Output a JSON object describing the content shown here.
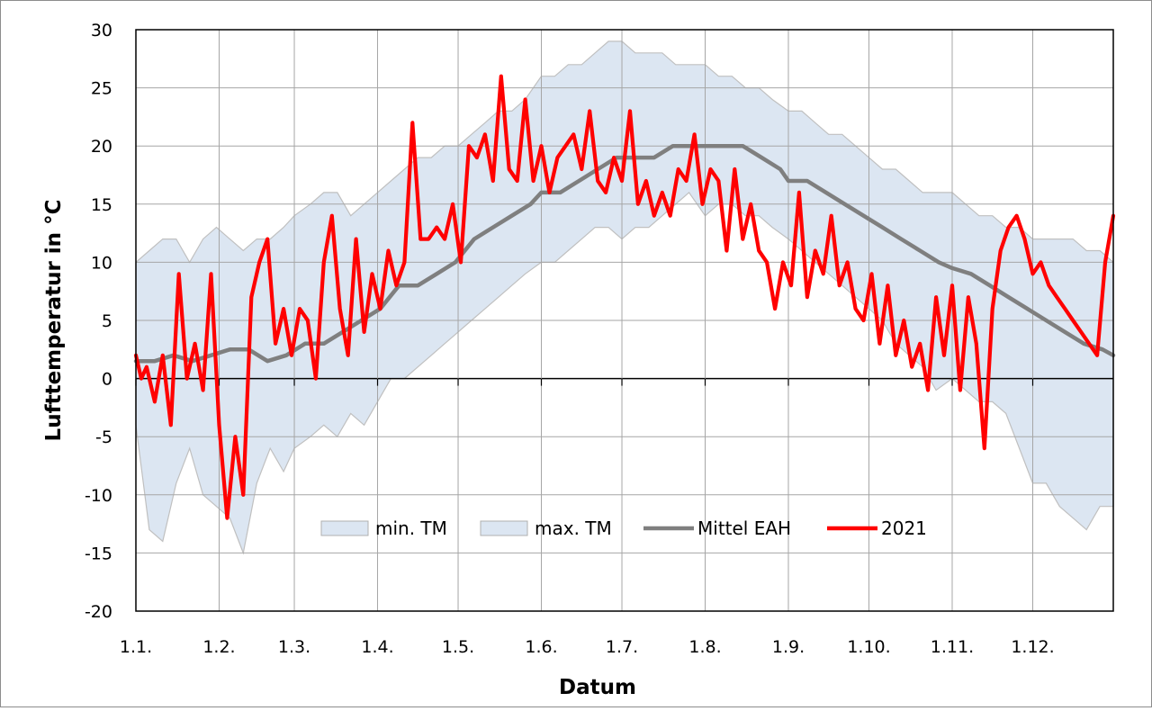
{
  "chart_data": {
    "type": "line",
    "title": "",
    "xlabel": "Datum",
    "ylabel": "Lufttemperatur in °C",
    "ylim": [
      -20,
      30
    ],
    "yticks": [
      30,
      25,
      20,
      15,
      10,
      5,
      0,
      -5,
      -10,
      -15,
      -20
    ],
    "xlim_day": [
      1,
      365
    ],
    "xticks": [
      "1.1.",
      "1.2.",
      "1.3.",
      "1.4.",
      "1.5.",
      "1.6.",
      "1.7.",
      "1.8.",
      "1.9.",
      "1.10.",
      "1.11.",
      "1.12."
    ],
    "grid": true,
    "legend_position": "bottom-center inside plot",
    "x_unit": "day of year",
    "series": [
      {
        "name": "min. TM",
        "kind": "band-lower",
        "color": "#dce6f2",
        "x": [
          1,
          6,
          11,
          16,
          21,
          26,
          31,
          36,
          41,
          46,
          51,
          56,
          60,
          66,
          71,
          76,
          81,
          86,
          91,
          96,
          101,
          106,
          111,
          116,
          121,
          126,
          131,
          136,
          141,
          146,
          152,
          157,
          162,
          167,
          172,
          177,
          182,
          187,
          192,
          197,
          202,
          207,
          213,
          218,
          223,
          228,
          233,
          238,
          244,
          249,
          254,
          259,
          264,
          269,
          274,
          279,
          284,
          289,
          294,
          299,
          305,
          310,
          315,
          320,
          325,
          330,
          335,
          340,
          345,
          350,
          355,
          360,
          365
        ],
        "values": [
          -4,
          -13,
          -14,
          -9,
          -6,
          -10,
          -11,
          -12,
          -15,
          -9,
          -6,
          -8,
          -6,
          -5,
          -4,
          -5,
          -3,
          -4,
          -2,
          0,
          0,
          1,
          2,
          3,
          4,
          5,
          6,
          7,
          8,
          9,
          10,
          10,
          11,
          12,
          13,
          13,
          12,
          13,
          13,
          14,
          15,
          16,
          14,
          15,
          15,
          14,
          14,
          13,
          12,
          11,
          10,
          9,
          8,
          7,
          6,
          5,
          3,
          2,
          1,
          -1,
          0,
          -1,
          -2,
          -2,
          -3,
          -6,
          -9,
          -9,
          -11,
          -12,
          -13,
          -11,
          -11
        ]
      },
      {
        "name": "max. TM",
        "kind": "band-upper",
        "color": "#dce6f2",
        "x": [
          1,
          6,
          11,
          16,
          21,
          26,
          31,
          36,
          41,
          46,
          51,
          56,
          60,
          66,
          71,
          76,
          81,
          86,
          91,
          96,
          101,
          106,
          111,
          116,
          121,
          126,
          131,
          136,
          141,
          146,
          152,
          157,
          162,
          167,
          172,
          177,
          182,
          187,
          192,
          197,
          202,
          207,
          213,
          218,
          223,
          228,
          233,
          238,
          244,
          249,
          254,
          259,
          264,
          269,
          274,
          279,
          284,
          289,
          294,
          299,
          305,
          310,
          315,
          320,
          325,
          330,
          335,
          340,
          345,
          350,
          355,
          360,
          365
        ],
        "values": [
          10,
          11,
          12,
          12,
          10,
          12,
          13,
          12,
          11,
          12,
          12,
          13,
          14,
          15,
          16,
          16,
          14,
          15,
          16,
          17,
          18,
          19,
          19,
          20,
          20,
          21,
          22,
          23,
          23,
          24,
          26,
          26,
          27,
          27,
          28,
          29,
          29,
          28,
          28,
          28,
          27,
          27,
          27,
          26,
          26,
          25,
          25,
          24,
          23,
          23,
          22,
          21,
          21,
          20,
          19,
          18,
          18,
          17,
          16,
          16,
          16,
          15,
          14,
          14,
          13,
          13,
          12,
          12,
          12,
          12,
          11,
          11,
          10
        ]
      },
      {
        "name": "Mittel EAH",
        "kind": "line",
        "color": "#7f7f7f",
        "x": [
          1,
          8,
          15,
          22,
          29,
          36,
          43,
          50,
          57,
          64,
          71,
          78,
          85,
          92,
          99,
          106,
          113,
          120,
          127,
          134,
          141,
          148,
          152,
          159,
          166,
          173,
          180,
          187,
          194,
          201,
          208,
          213,
          220,
          227,
          234,
          241,
          244,
          251,
          258,
          265,
          272,
          279,
          286,
          293,
          300,
          305,
          312,
          319,
          326,
          333,
          340,
          347,
          354,
          361,
          365
        ],
        "values": [
          1.5,
          1.5,
          2,
          1.5,
          2,
          2.5,
          2.5,
          1.5,
          2,
          3,
          3,
          4,
          5,
          6,
          8,
          8,
          9,
          10,
          12,
          13,
          14,
          15,
          16,
          16,
          17,
          18,
          19,
          19,
          19,
          20,
          20,
          20,
          20,
          20,
          19,
          18,
          17,
          17,
          16,
          15,
          14,
          13,
          12,
          11,
          10,
          9.5,
          9,
          8,
          7,
          6,
          5,
          4,
          3,
          2.5,
          2
        ]
      },
      {
        "name": "2021",
        "kind": "line",
        "color": "#ff0000",
        "x": [
          1,
          3,
          5,
          8,
          11,
          14,
          17,
          20,
          23,
          26,
          29,
          32,
          35,
          38,
          41,
          44,
          47,
          50,
          53,
          56,
          59,
          62,
          65,
          68,
          71,
          74,
          77,
          80,
          83,
          86,
          89,
          92,
          95,
          98,
          101,
          104,
          107,
          110,
          113,
          116,
          119,
          122,
          125,
          128,
          131,
          134,
          137,
          140,
          143,
          146,
          149,
          152,
          155,
          158,
          161,
          164,
          167,
          170,
          173,
          176,
          179,
          182,
          185,
          188,
          191,
          194,
          197,
          200,
          203,
          206,
          209,
          212,
          215,
          218,
          221,
          224,
          227,
          230,
          233,
          236,
          239,
          242,
          245,
          248,
          251,
          254,
          257,
          260,
          263,
          266,
          269,
          272,
          275,
          278,
          281,
          284,
          287,
          290,
          293,
          296,
          299,
          302,
          305,
          308,
          311,
          314,
          317,
          320,
          323,
          326,
          329,
          332,
          335,
          338,
          341,
          344,
          347,
          350,
          353,
          356,
          359,
          362,
          365
        ],
        "values": [
          2,
          0,
          1,
          -2,
          2,
          -4,
          9,
          0,
          3,
          -1,
          9,
          -4,
          -12,
          -5,
          -10,
          7,
          10,
          12,
          3,
          6,
          2,
          6,
          5,
          0,
          10,
          14,
          6,
          2,
          12,
          4,
          9,
          6,
          11,
          8,
          10,
          22,
          12,
          12,
          13,
          12,
          15,
          10,
          20,
          19,
          21,
          17,
          26,
          18,
          17,
          24,
          17,
          20,
          16,
          19,
          20,
          21,
          18,
          23,
          17,
          16,
          19,
          17,
          23,
          15,
          17,
          14,
          16,
          14,
          18,
          17,
          21,
          15,
          18,
          17,
          11,
          18,
          12,
          15,
          11,
          10,
          6,
          10,
          8,
          16,
          7,
          11,
          9,
          14,
          8,
          10,
          6,
          5,
          9,
          3,
          8,
          2,
          5,
          1,
          3,
          -1,
          7,
          2,
          8,
          -1,
          7,
          3,
          -6,
          6,
          11,
          13,
          14,
          12,
          9,
          10,
          8,
          7,
          6,
          5,
          4,
          3,
          2,
          10,
          14
        ]
      }
    ]
  }
}
